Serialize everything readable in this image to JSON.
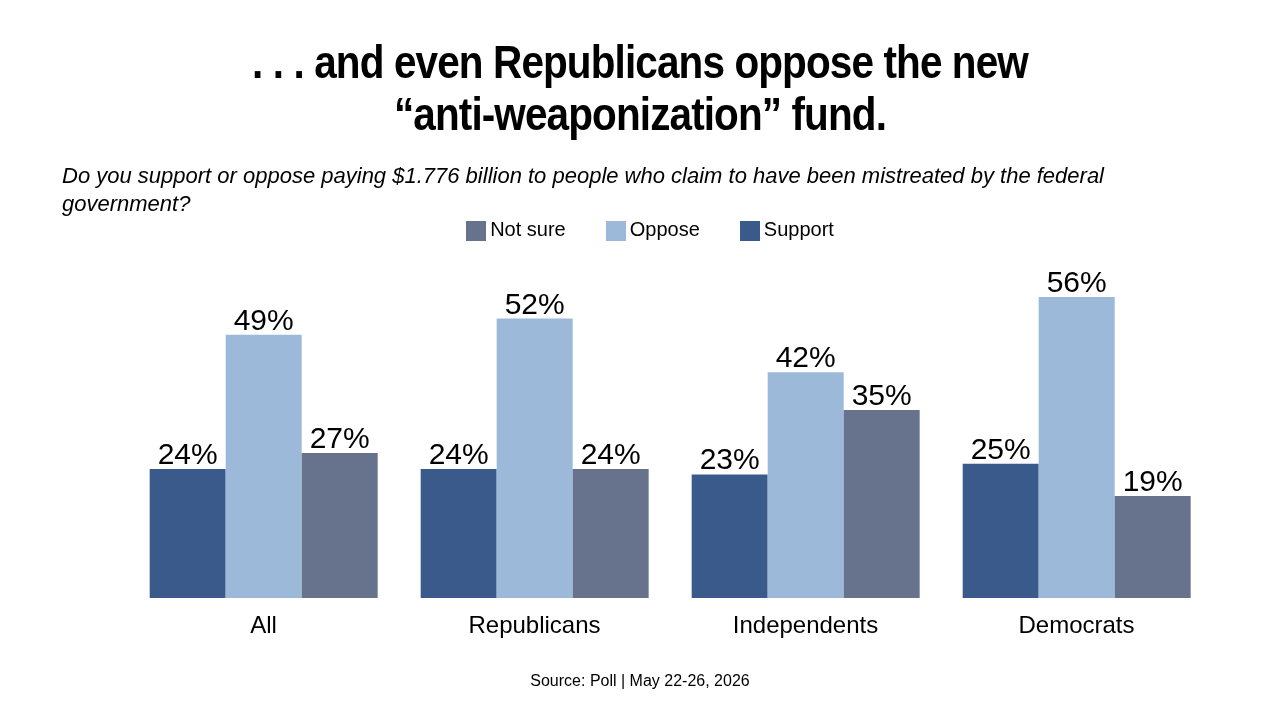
{
  "chart_data": {
    "type": "bar",
    "title": ". . . and even Republicans oppose the new “anti-weaponization” fund.",
    "subtitle": "Do you support or oppose paying $1.776 billion to people who claim to have been mistreated by the federal government?",
    "categories": [
      "All",
      "Republicans",
      "Independents",
      "Democrats"
    ],
    "series": [
      {
        "name": "Support",
        "color": "#3a5a8c",
        "values": [
          24,
          24,
          23,
          25
        ],
        "value_labels": [
          "24%",
          "24%",
          "23%",
          "25%"
        ]
      },
      {
        "name": "Oppose",
        "color": "#9db9d9",
        "values": [
          49,
          52,
          42,
          56
        ],
        "value_labels": [
          "49%",
          "52%",
          "42%",
          "56%"
        ]
      },
      {
        "name": "Not sure",
        "color": "#67738c",
        "values": [
          27,
          24,
          35,
          19
        ],
        "value_labels": [
          "27%",
          "24%",
          "35%",
          "19%"
        ]
      }
    ],
    "legend": "top",
    "grid": false,
    "annotations": [
      "Source: Poll | May 22-26, 2026"
    ]
  }
}
